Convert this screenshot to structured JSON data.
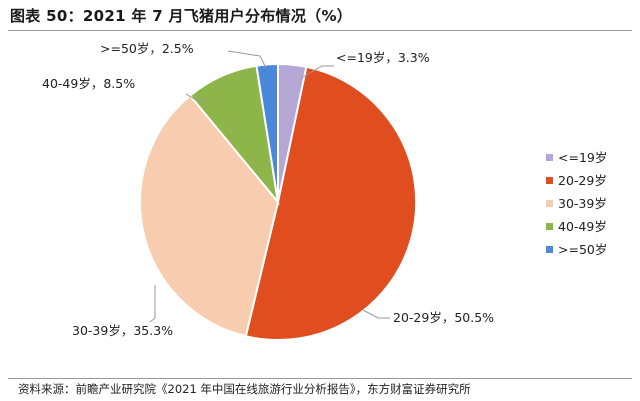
{
  "title": "图表 50：2021 年 7 月飞猪用户分布情况（%）",
  "source": "资料来源：前瞻产业研究院《2021 年中国在线旅游行业分析报告》，东方财富证券研究所",
  "chart_data": {
    "type": "pie",
    "categories": [
      "<=19岁",
      "20-29岁",
      "30-39岁",
      "40-49岁",
      ">=50岁"
    ],
    "values": [
      3.3,
      50.5,
      35.3,
      8.5,
      2.5
    ],
    "unit": "%",
    "data_labels": [
      "<=19岁，3.3%",
      "20-29岁，50.5%",
      "30-39岁，35.3%",
      "40-49岁，8.5%",
      ">=50岁，2.5%"
    ],
    "colors": [
      "#B4A7D6",
      "#E04E1F",
      "#F8CDAF",
      "#8DB54A",
      "#4A89D9"
    ],
    "legend": {
      "position": "right",
      "entries": [
        "<=19岁",
        "20-29岁",
        "30-39岁",
        "40-49岁",
        ">=50岁"
      ]
    },
    "start_angle_deg": 0,
    "direction": "clockwise"
  }
}
